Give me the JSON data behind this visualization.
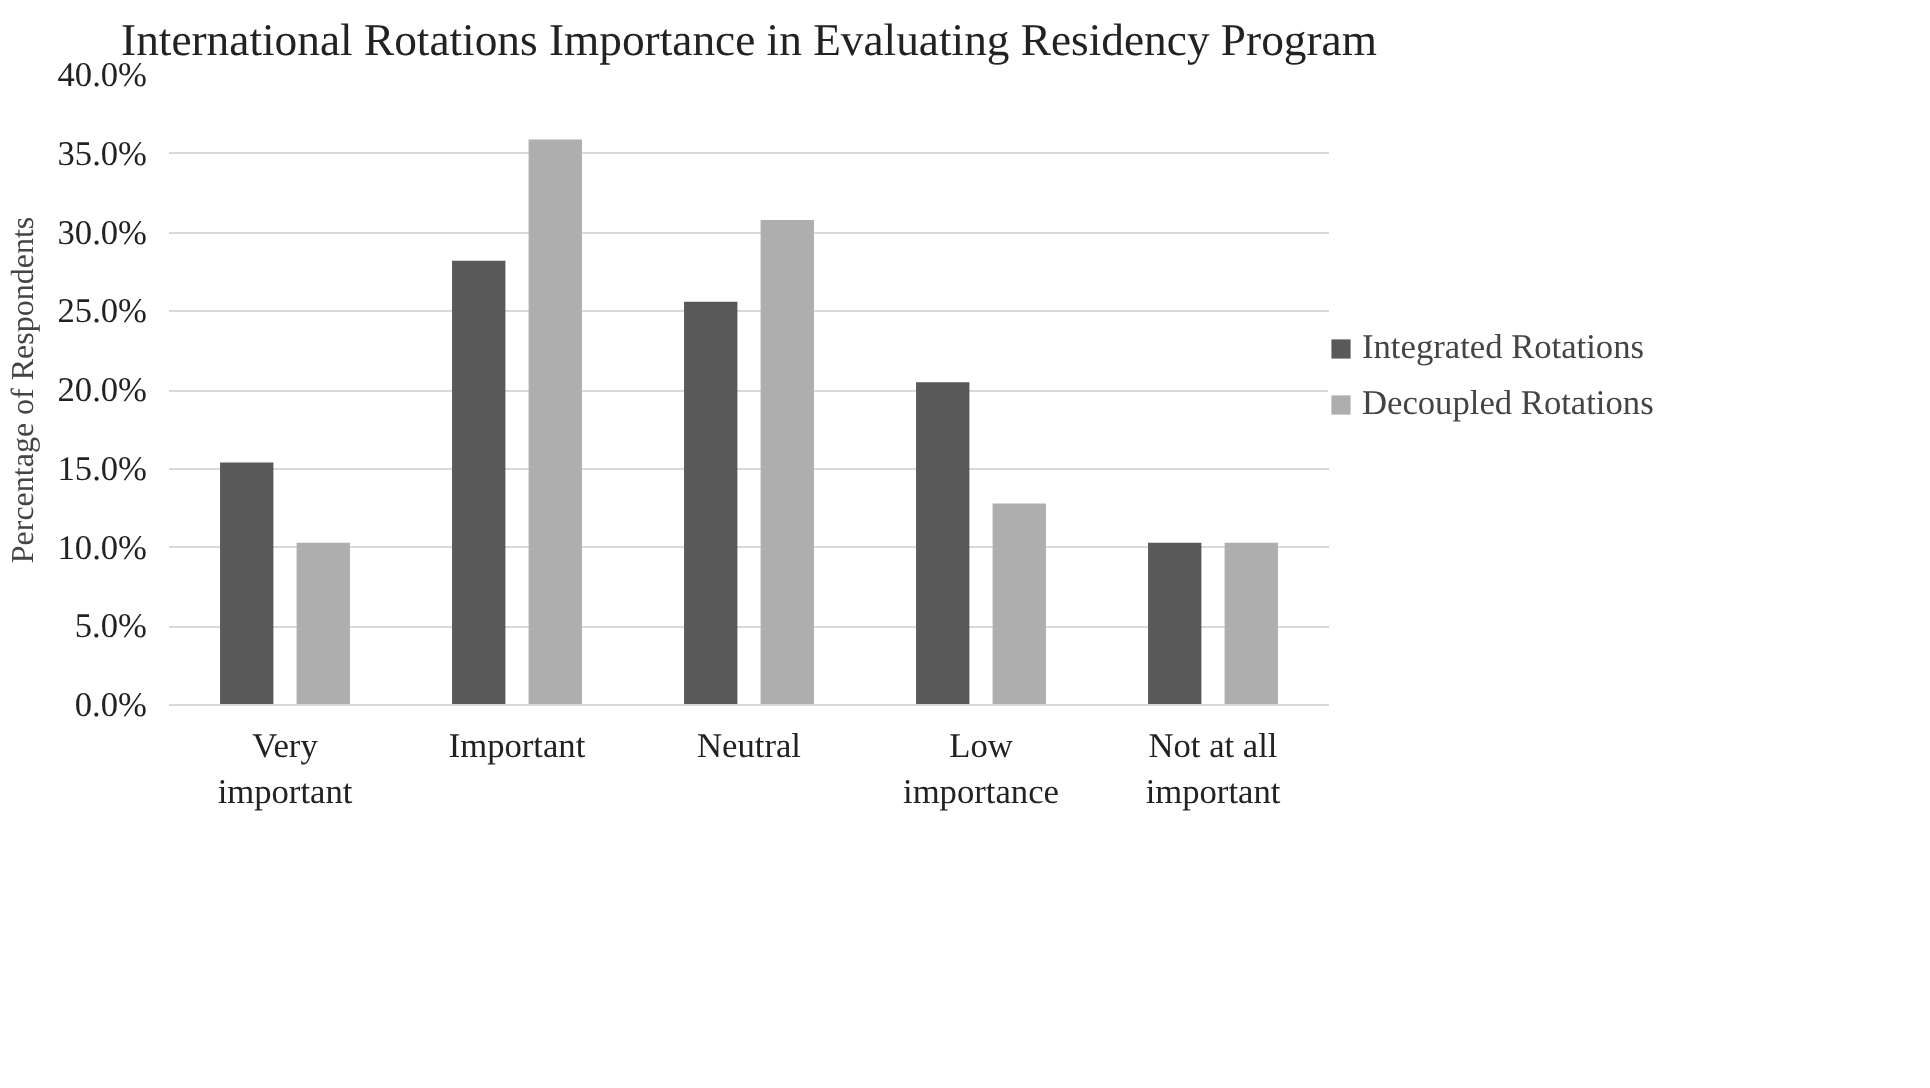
{
  "chart_data": {
    "type": "bar",
    "title": "International Rotations Importance in Evaluating Residency Program",
    "ylabel": "Percentage of Respondents",
    "categories": [
      "Very important",
      "Important",
      "Neutral",
      "Low importance",
      "Not at all important"
    ],
    "series": [
      {
        "name": "Integrated Rotations",
        "color": "#595959",
        "values": [
          15.4,
          28.2,
          25.6,
          20.5,
          10.3
        ]
      },
      {
        "name": "Decoupled Rotations",
        "color": "#aeaeae",
        "values": [
          10.3,
          35.9,
          30.8,
          12.8,
          10.3
        ]
      }
    ],
    "ylim": [
      0,
      40
    ],
    "yticks": [
      {
        "value": 0,
        "label": "0.0%"
      },
      {
        "value": 5,
        "label": "5.0%"
      },
      {
        "value": 10,
        "label": "10.0%"
      },
      {
        "value": 15,
        "label": "15.0%"
      },
      {
        "value": 20,
        "label": "20.0%"
      },
      {
        "value": 25,
        "label": "25.0%"
      },
      {
        "value": 30,
        "label": "30.0%"
      },
      {
        "value": 35,
        "label": "35.0%"
      },
      {
        "value": 40,
        "label": "40.0%"
      }
    ],
    "grid": "y",
    "legend": "right"
  }
}
